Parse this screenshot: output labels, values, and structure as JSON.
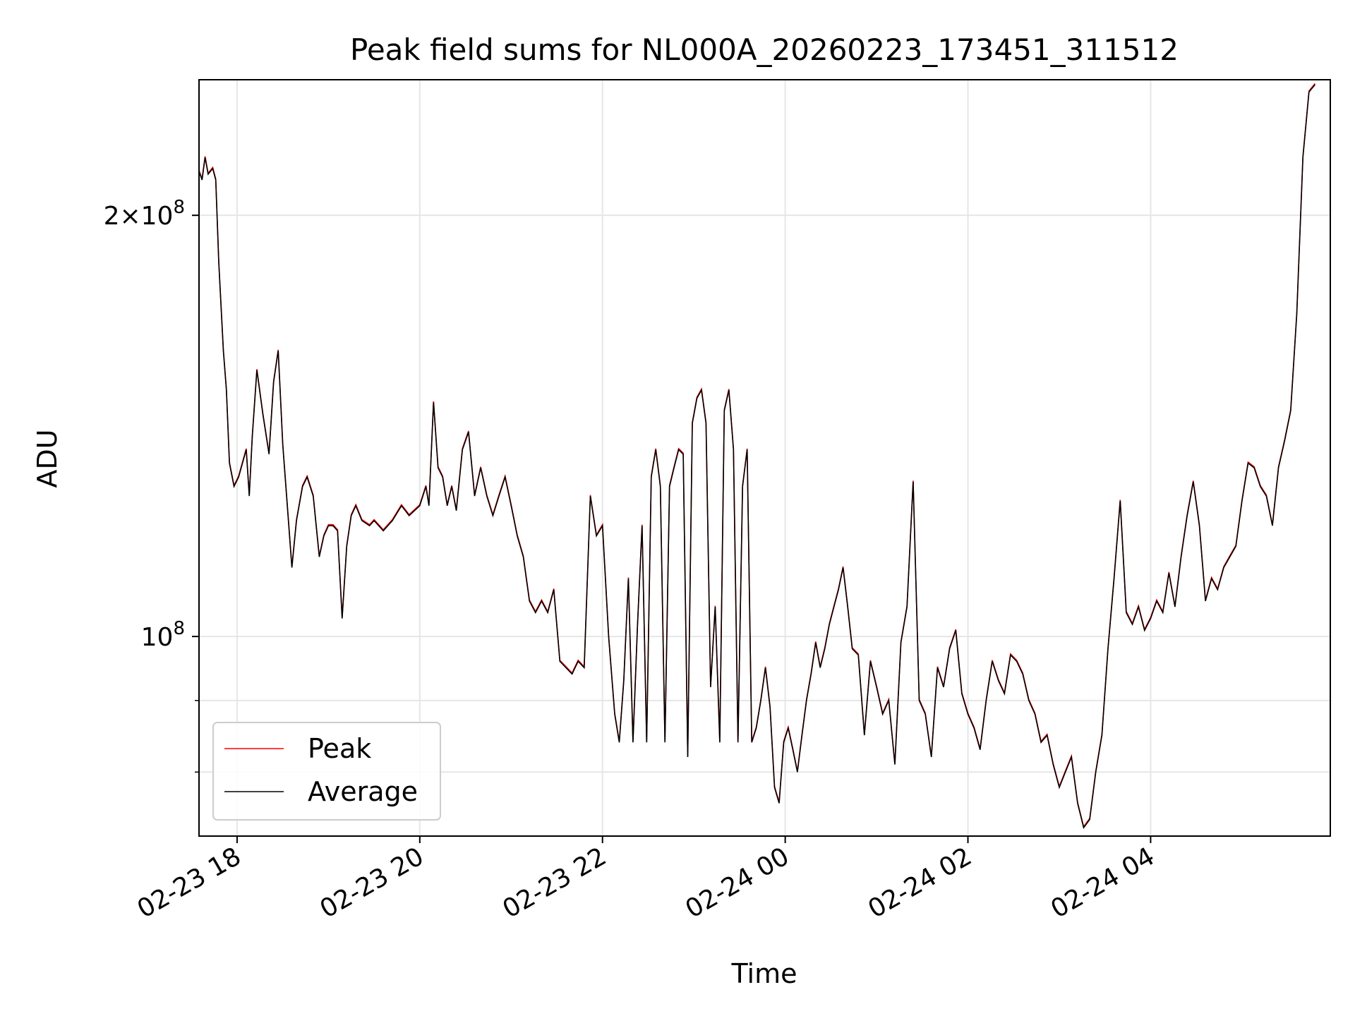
{
  "chart_data": {
    "type": "line",
    "title": "Peak field sums for NL000A_20260223_173451_311512",
    "xlabel": "Time",
    "ylabel": "ADU",
    "yscale": "log",
    "ylim": [
      72000000,
      250000000
    ],
    "xlim": [
      "2026-02-23 17:35",
      "2026-02-24 05:58"
    ],
    "grid": true,
    "legend": "lower-left",
    "x_ticks": [
      {
        "t": "2026-02-23 18:00",
        "label": "02-23 18"
      },
      {
        "t": "2026-02-23 20:00",
        "label": "02-23 20"
      },
      {
        "t": "2026-02-23 22:00",
        "label": "02-23 22"
      },
      {
        "t": "2026-02-24 00:00",
        "label": "02-24 00"
      },
      {
        "t": "2026-02-24 02:00",
        "label": "02-24 02"
      },
      {
        "t": "2026-02-24 04:00",
        "label": "02-24 04"
      }
    ],
    "y_ticks": [
      {
        "v": 100000000,
        "base": "10",
        "exp": "8",
        "mult": ""
      },
      {
        "v": 200000000,
        "base": "10",
        "exp": "8",
        "mult": "2×"
      }
    ],
    "y_minor_ticks": [
      80000000,
      90000000
    ],
    "series": [
      {
        "name": "Peak",
        "color": "#ff0000"
      },
      {
        "name": "Average",
        "color": "#000000"
      }
    ],
    "x": [
      "2026-02-23 17:35",
      "2026-02-23 17:37",
      "2026-02-23 17:39",
      "2026-02-23 17:41",
      "2026-02-23 17:44",
      "2026-02-23 17:46",
      "2026-02-23 17:48",
      "2026-02-23 17:51",
      "2026-02-23 17:53",
      "2026-02-23 17:55",
      "2026-02-23 17:58",
      "2026-02-23 18:01",
      "2026-02-23 18:06",
      "2026-02-23 18:08",
      "2026-02-23 18:10",
      "2026-02-23 18:13",
      "2026-02-23 18:17",
      "2026-02-23 18:21",
      "2026-02-23 18:24",
      "2026-02-23 18:27",
      "2026-02-23 18:30",
      "2026-02-23 18:33",
      "2026-02-23 18:36",
      "2026-02-23 18:39",
      "2026-02-23 18:43",
      "2026-02-23 18:46",
      "2026-02-23 18:50",
      "2026-02-23 18:54",
      "2026-02-23 18:57",
      "2026-02-23 19:00",
      "2026-02-23 19:03",
      "2026-02-23 19:06",
      "2026-02-23 19:09",
      "2026-02-23 19:12",
      "2026-02-23 19:15",
      "2026-02-23 19:18",
      "2026-02-23 19:22",
      "2026-02-23 19:27",
      "2026-02-23 19:30",
      "2026-02-23 19:36",
      "2026-02-23 19:42",
      "2026-02-23 19:48",
      "2026-02-23 19:53",
      "2026-02-23 20:00",
      "2026-02-23 20:04",
      "2026-02-23 20:06",
      "2026-02-23 20:09",
      "2026-02-23 20:12",
      "2026-02-23 20:15",
      "2026-02-23 20:18",
      "2026-02-23 20:21",
      "2026-02-23 20:24",
      "2026-02-23 20:28",
      "2026-02-23 20:32",
      "2026-02-23 20:36",
      "2026-02-23 20:40",
      "2026-02-23 20:44",
      "2026-02-23 20:48",
      "2026-02-23 20:52",
      "2026-02-23 20:56",
      "2026-02-23 21:00",
      "2026-02-23 21:04",
      "2026-02-23 21:08",
      "2026-02-23 21:12",
      "2026-02-23 21:16",
      "2026-02-23 21:20",
      "2026-02-23 21:24",
      "2026-02-23 21:28",
      "2026-02-23 21:32",
      "2026-02-23 21:36",
      "2026-02-23 21:40",
      "2026-02-23 21:44",
      "2026-02-23 21:48",
      "2026-02-23 21:52",
      "2026-02-23 21:56",
      "2026-02-23 22:00",
      "2026-02-23 22:04",
      "2026-02-23 22:08",
      "2026-02-23 22:11",
      "2026-02-23 22:14",
      "2026-02-23 22:17",
      "2026-02-23 22:20",
      "2026-02-23 22:23",
      "2026-02-23 22:26",
      "2026-02-23 22:29",
      "2026-02-23 22:32",
      "2026-02-23 22:35",
      "2026-02-23 22:38",
      "2026-02-23 22:41",
      "2026-02-23 22:44",
      "2026-02-23 22:47",
      "2026-02-23 22:50",
      "2026-02-23 22:53",
      "2026-02-23 22:56",
      "2026-02-23 22:59",
      "2026-02-23 23:02",
      "2026-02-23 23:05",
      "2026-02-23 23:08",
      "2026-02-23 23:11",
      "2026-02-23 23:14",
      "2026-02-23 23:17",
      "2026-02-23 23:20",
      "2026-02-23 23:23",
      "2026-02-23 23:26",
      "2026-02-23 23:29",
      "2026-02-23 23:32",
      "2026-02-23 23:35",
      "2026-02-23 23:38",
      "2026-02-23 23:41",
      "2026-02-23 23:44",
      "2026-02-23 23:47",
      "2026-02-23 23:50",
      "2026-02-23 23:53",
      "2026-02-23 23:56",
      "2026-02-23 23:59",
      "2026-02-24 00:02",
      "2026-02-24 00:05",
      "2026-02-24 00:08",
      "2026-02-24 00:11",
      "2026-02-24 00:14",
      "2026-02-24 00:17",
      "2026-02-24 00:20",
      "2026-02-24 00:23",
      "2026-02-24 00:26",
      "2026-02-24 00:29",
      "2026-02-24 00:32",
      "2026-02-24 00:35",
      "2026-02-24 00:38",
      "2026-02-24 00:41",
      "2026-02-24 00:44",
      "2026-02-24 00:48",
      "2026-02-24 00:52",
      "2026-02-24 00:56",
      "2026-02-24 01:00",
      "2026-02-24 01:04",
      "2026-02-24 01:08",
      "2026-02-24 01:12",
      "2026-02-24 01:16",
      "2026-02-24 01:20",
      "2026-02-24 01:24",
      "2026-02-24 01:28",
      "2026-02-24 01:32",
      "2026-02-24 01:36",
      "2026-02-24 01:40",
      "2026-02-24 01:44",
      "2026-02-24 01:48",
      "2026-02-24 01:52",
      "2026-02-24 01:56",
      "2026-02-24 02:00",
      "2026-02-24 02:04",
      "2026-02-24 02:08",
      "2026-02-24 02:12",
      "2026-02-24 02:16",
      "2026-02-24 02:20",
      "2026-02-24 02:24",
      "2026-02-24 02:28",
      "2026-02-24 02:32",
      "2026-02-24 02:36",
      "2026-02-24 02:40",
      "2026-02-24 02:44",
      "2026-02-24 02:48",
      "2026-02-24 02:52",
      "2026-02-24 02:56",
      "2026-02-24 03:00",
      "2026-02-24 03:04",
      "2026-02-24 03:08",
      "2026-02-24 03:12",
      "2026-02-24 03:16",
      "2026-02-24 03:20",
      "2026-02-24 03:24",
      "2026-02-24 03:28",
      "2026-02-24 03:32",
      "2026-02-24 03:36",
      "2026-02-24 03:40",
      "2026-02-24 03:44",
      "2026-02-24 03:48",
      "2026-02-24 03:52",
      "2026-02-24 03:56",
      "2026-02-24 04:00",
      "2026-02-24 04:04",
      "2026-02-24 04:08",
      "2026-02-24 04:12",
      "2026-02-24 04:16",
      "2026-02-24 04:20",
      "2026-02-24 04:24",
      "2026-02-24 04:28",
      "2026-02-24 04:32",
      "2026-02-24 04:36",
      "2026-02-24 04:40",
      "2026-02-24 04:44",
      "2026-02-24 04:48",
      "2026-02-24 04:52",
      "2026-02-24 04:56",
      "2026-02-24 05:00",
      "2026-02-24 05:04",
      "2026-02-24 05:08",
      "2026-02-24 05:12",
      "2026-02-24 05:16",
      "2026-02-24 05:20",
      "2026-02-24 05:24",
      "2026-02-24 05:28",
      "2026-02-24 05:32",
      "2026-02-24 05:36",
      "2026-02-24 05:40",
      "2026-02-24 05:44",
      "2026-02-24 05:48",
      "2026-02-24 05:52",
      "2026-02-24 05:56",
      "2026-02-24 05:58"
    ],
    "average": [
      215000000,
      212000000,
      220000000,
      214000000,
      216000000,
      212000000,
      185000000,
      160000000,
      150000000,
      133000000,
      128000000,
      130000000,
      136000000,
      126000000,
      139000000,
      155000000,
      144000000,
      135000000,
      152000000,
      160000000,
      137000000,
      124000000,
      112000000,
      121000000,
      128000000,
      130000000,
      126000000,
      114000000,
      118000000,
      120000000,
      120000000,
      119000000,
      103000000,
      116000000,
      122000000,
      124000000,
      121000000,
      120000000,
      121000000,
      119000000,
      121000000,
      124000000,
      122000000,
      124000000,
      128000000,
      124000000,
      147000000,
      132000000,
      130000000,
      124000000,
      128000000,
      123000000,
      136000000,
      140000000,
      126000000,
      132000000,
      126000000,
      122000000,
      126000000,
      130000000,
      124000000,
      118000000,
      114000000,
      106000000,
      104000000,
      106000000,
      104000000,
      108000000,
      96000000,
      95000000,
      94000000,
      96000000,
      95000000,
      126000000,
      118000000,
      120000000,
      100000000,
      88000000,
      84000000,
      93000000,
      110000000,
      84000000,
      102000000,
      120000000,
      84000000,
      130000000,
      136000000,
      128000000,
      84000000,
      128000000,
      132000000,
      136000000,
      135000000,
      82000000,
      142000000,
      148000000,
      150000000,
      142000000,
      92000000,
      105000000,
      84000000,
      145000000,
      150000000,
      136000000,
      84000000,
      128000000,
      136000000,
      84000000,
      86000000,
      90000000,
      95000000,
      89000000,
      78000000,
      76000000,
      84000000,
      86000000,
      83000000,
      80000000,
      85000000,
      90000000,
      94000000,
      99000000,
      95000000,
      98000000,
      102000000,
      105000000,
      108000000,
      112000000,
      105000000,
      98000000,
      97000000,
      85000000,
      96000000,
      92000000,
      88000000,
      90000000,
      81000000,
      99000000,
      105000000,
      129000000,
      90000000,
      88000000,
      82000000,
      95000000,
      92000000,
      98000000,
      101000000,
      91000000,
      88000000,
      86000000,
      83000000,
      90000000,
      96000000,
      93000000,
      91000000,
      97000000,
      96000000,
      94000000,
      90000000,
      88000000,
      84000000,
      85000000,
      81000000,
      78000000,
      80000000,
      82000000,
      76000000,
      73000000,
      74000000,
      80000000,
      85000000,
      98000000,
      110000000,
      125000000,
      104000000,
      102000000,
      105000000,
      101000000,
      103000000,
      106000000,
      104000000,
      111000000,
      105000000,
      114000000,
      122000000,
      129000000,
      120000000,
      106000000,
      110000000,
      108000000,
      112000000,
      114000000,
      116000000,
      125000000,
      133000000,
      132000000,
      128000000,
      126000000,
      120000000,
      132000000,
      138000000,
      145000000,
      170000000,
      220000000,
      245000000,
      248000000
    ]
  }
}
